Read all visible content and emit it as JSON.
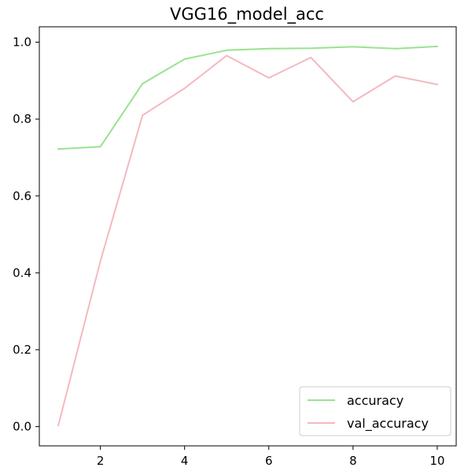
{
  "chart_data": {
    "type": "line",
    "title": "VGG16_model_acc",
    "xlabel": "",
    "ylabel": "",
    "x": [
      1,
      2,
      3,
      4,
      5,
      6,
      7,
      8,
      9,
      10
    ],
    "xlim": [
      0.55,
      10.45
    ],
    "ylim": [
      -0.05,
      1.04
    ],
    "xticks": [
      2,
      4,
      6,
      8,
      10
    ],
    "yticks": [
      0.0,
      0.2,
      0.4,
      0.6,
      0.8,
      1.0
    ],
    "xtick_labels": [
      "2",
      "4",
      "6",
      "8",
      "10"
    ],
    "ytick_labels": [
      "0.0",
      "0.2",
      "0.4",
      "0.6",
      "0.8",
      "1.0"
    ],
    "grid": false,
    "legend_position": "lower-right",
    "series": [
      {
        "name": "accuracy",
        "color": "#98e38f",
        "values": [
          0.722,
          0.728,
          0.892,
          0.956,
          0.979,
          0.983,
          0.984,
          0.988,
          0.983,
          0.989
        ]
      },
      {
        "name": "val_accuracy",
        "color": "#f5b8c0",
        "values": [
          0.003,
          0.43,
          0.81,
          0.88,
          0.965,
          0.907,
          0.96,
          0.845,
          0.912,
          0.89
        ]
      }
    ]
  }
}
